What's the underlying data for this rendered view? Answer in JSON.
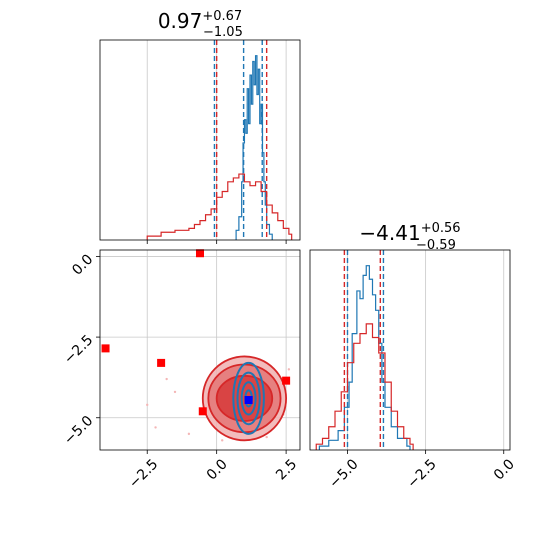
{
  "chart_data": [
    {
      "id": "param1_marginal",
      "type": "histogram",
      "title": {
        "value": "0.97",
        "plus": "+0.67",
        "minus": "−1.05"
      },
      "xlim": [
        -4.2,
        3.0
      ],
      "xticks": [
        -2.5,
        0.0,
        2.5
      ],
      "grid": true,
      "series": [
        {
          "color": "#1f77b4",
          "quantiles": [
            -0.08,
            0.97,
            1.64
          ],
          "bins": [
            [
              0.7,
              0.05
            ],
            [
              0.8,
              0.12
            ],
            [
              0.9,
              0.3
            ],
            [
              0.95,
              0.5
            ],
            [
              1.0,
              0.62
            ],
            [
              1.05,
              0.55
            ],
            [
              1.1,
              0.78
            ],
            [
              1.15,
              0.6
            ],
            [
              1.2,
              0.85
            ],
            [
              1.25,
              0.7
            ],
            [
              1.3,
              0.92
            ],
            [
              1.35,
              0.8
            ],
            [
              1.4,
              0.95
            ],
            [
              1.45,
              0.75
            ],
            [
              1.5,
              0.88
            ],
            [
              1.55,
              0.6
            ],
            [
              1.6,
              0.7
            ],
            [
              1.65,
              0.45
            ],
            [
              1.7,
              0.3
            ],
            [
              1.75,
              0.18
            ],
            [
              1.8,
              0.08
            ],
            [
              1.9,
              0.03
            ]
          ]
        },
        {
          "color": "#d62728",
          "quantiles": [
            0.0,
            1.8
          ],
          "bins": [
            [
              -2.5,
              0.02
            ],
            [
              -2.0,
              0.04
            ],
            [
              -1.5,
              0.05
            ],
            [
              -1.0,
              0.06
            ],
            [
              -0.8,
              0.08
            ],
            [
              -0.6,
              0.1
            ],
            [
              -0.4,
              0.13
            ],
            [
              -0.2,
              0.16
            ],
            [
              0.0,
              0.22
            ],
            [
              0.2,
              0.25
            ],
            [
              0.4,
              0.3
            ],
            [
              0.6,
              0.32
            ],
            [
              0.8,
              0.34
            ],
            [
              1.0,
              0.3
            ],
            [
              1.2,
              0.28
            ],
            [
              1.4,
              0.3
            ],
            [
              1.6,
              0.25
            ],
            [
              1.8,
              0.18
            ],
            [
              2.0,
              0.14
            ],
            [
              2.2,
              0.1
            ],
            [
              2.4,
              0.06
            ],
            [
              2.6,
              0.03
            ]
          ]
        }
      ]
    },
    {
      "id": "param2_marginal",
      "type": "histogram",
      "title": {
        "value": "−4.41",
        "plus": "+0.56",
        "minus": "−0.59"
      },
      "xlim": [
        -6.2,
        0.2
      ],
      "xticks": [
        -5.0,
        -2.5,
        0.0
      ],
      "grid": true,
      "series": [
        {
          "color": "#1f77b4",
          "quantiles": [
            -5.0,
            -3.85
          ],
          "bins": [
            [
              -5.9,
              0.02
            ],
            [
              -5.6,
              0.05
            ],
            [
              -5.3,
              0.1
            ],
            [
              -5.1,
              0.22
            ],
            [
              -4.95,
              0.35
            ],
            [
              -4.85,
              0.6
            ],
            [
              -4.7,
              0.82
            ],
            [
              -4.6,
              0.78
            ],
            [
              -4.5,
              0.9
            ],
            [
              -4.4,
              0.95
            ],
            [
              -4.3,
              0.88
            ],
            [
              -4.2,
              0.8
            ],
            [
              -4.1,
              0.72
            ],
            [
              -4.0,
              0.55
            ],
            [
              -3.9,
              0.35
            ],
            [
              -3.8,
              0.22
            ],
            [
              -3.6,
              0.12
            ],
            [
              -3.4,
              0.06
            ],
            [
              -3.1,
              0.02
            ]
          ]
        },
        {
          "color": "#d62728",
          "quantiles": [
            -5.1,
            -3.95
          ],
          "bins": [
            [
              -6.0,
              0.03
            ],
            [
              -5.8,
              0.06
            ],
            [
              -5.6,
              0.12
            ],
            [
              -5.4,
              0.2
            ],
            [
              -5.2,
              0.3
            ],
            [
              -5.0,
              0.45
            ],
            [
              -4.8,
              0.55
            ],
            [
              -4.6,
              0.6
            ],
            [
              -4.4,
              0.65
            ],
            [
              -4.2,
              0.58
            ],
            [
              -4.0,
              0.5
            ],
            [
              -3.8,
              0.35
            ],
            [
              -3.6,
              0.2
            ],
            [
              -3.4,
              0.12
            ],
            [
              -3.2,
              0.06
            ],
            [
              -3.0,
              0.03
            ]
          ]
        }
      ]
    },
    {
      "id": "joint",
      "type": "scatter",
      "xlim": [
        -4.2,
        3.0
      ],
      "ylim": [
        -6.0,
        0.2
      ],
      "xticks": [
        -2.5,
        0.0,
        2.5
      ],
      "yticks": [
        0.0,
        -2.5,
        -5.0
      ],
      "grid": true,
      "marker_color": "#ff0000",
      "points": [
        [
          -0.6,
          0.1
        ],
        [
          -4.0,
          -2.85
        ],
        [
          -2.0,
          -3.3
        ],
        [
          -0.5,
          -4.8
        ],
        [
          2.5,
          -3.85
        ]
      ],
      "truth": {
        "x": 1.15,
        "y": -4.45,
        "color": "#0000ff"
      },
      "contours": [
        {
          "color": "#d62728",
          "center": [
            1.0,
            -4.4
          ],
          "levels": [
            [
              1.5,
              1.3,
              0.85
            ],
            [
              1.3,
              1.05,
              0.55
            ],
            [
              1.0,
              0.7,
              0.3
            ]
          ]
        },
        {
          "color": "#1f77b4",
          "center": [
            1.15,
            -4.4
          ],
          "levels": [
            [
              0.55,
              1.1,
              0.0
            ],
            [
              0.4,
              0.8,
              0.0
            ],
            [
              0.25,
              0.5,
              0.0
            ],
            [
              0.12,
              0.25,
              0.0
            ]
          ]
        }
      ]
    }
  ]
}
